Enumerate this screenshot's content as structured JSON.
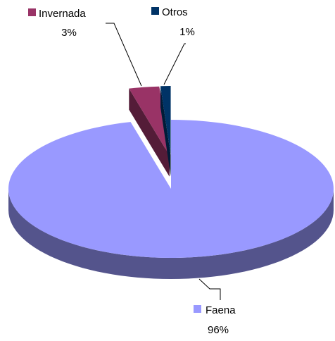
{
  "chart_data": {
    "type": "pie",
    "categories": [
      "Faena",
      "Invernada",
      "Otros"
    ],
    "values": [
      96,
      3,
      1
    ],
    "value_labels": [
      "96%",
      "3%",
      "1%"
    ],
    "colors": [
      "#9999ff",
      "#993366",
      "#003366"
    ]
  }
}
